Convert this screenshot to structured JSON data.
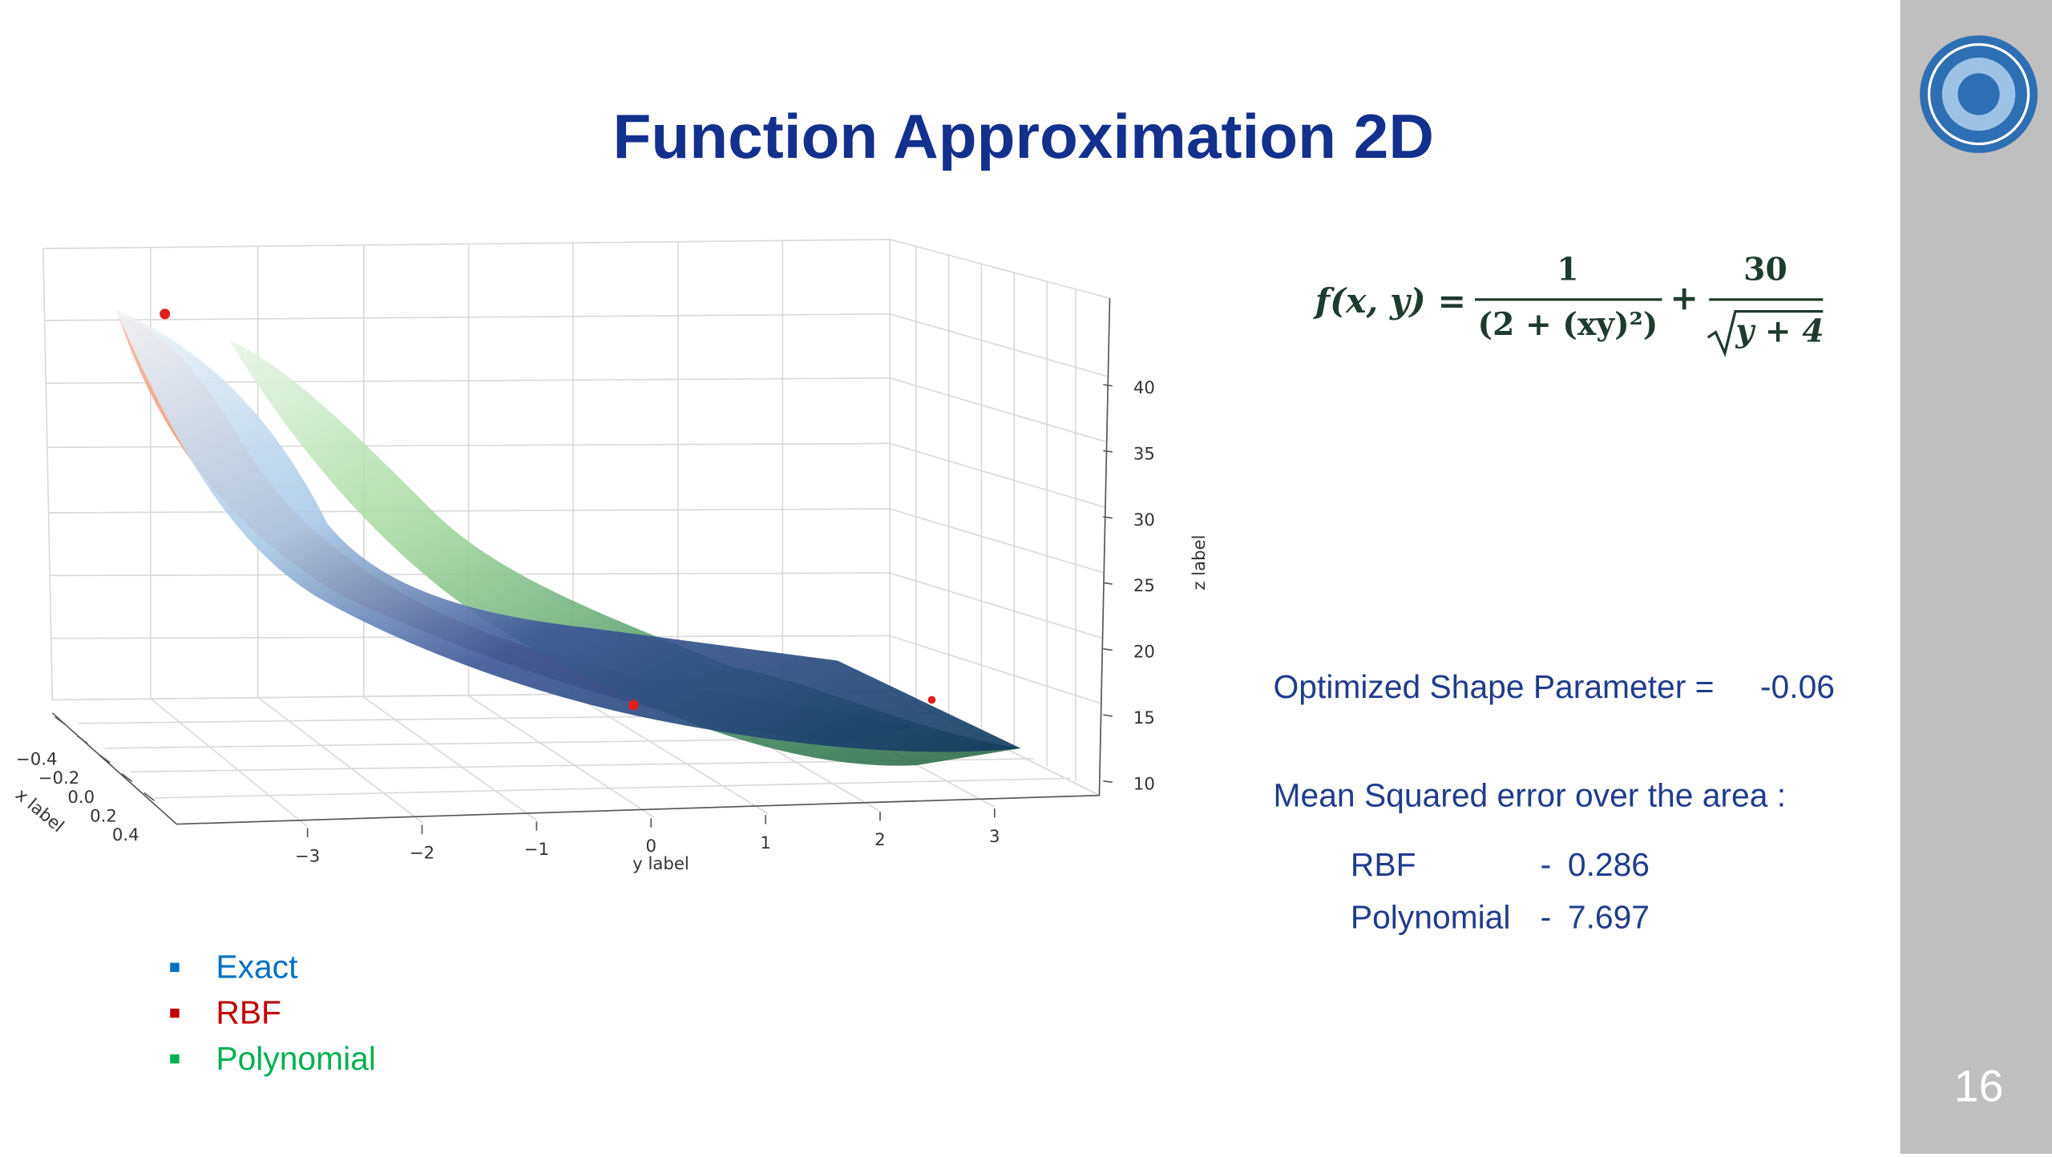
{
  "title": "Function Approximation 2D",
  "plot": {
    "x_label": "x label",
    "y_label": "y label",
    "z_label": "z label",
    "x_ticks": [
      "−0.4",
      "−0.2",
      "0.0",
      "0.2",
      "0.4"
    ],
    "y_ticks": [
      "−3",
      "−2",
      "−1",
      "0",
      "1",
      "2",
      "3"
    ],
    "z_ticks": [
      "10",
      "15",
      "20",
      "25",
      "30",
      "35",
      "40"
    ]
  },
  "formula": {
    "lhs": "f(x, y) =",
    "num1": "1",
    "den1": "(2 + (xy)²)",
    "plus": "+",
    "num2": "30",
    "den2": "y + 4"
  },
  "legend": [
    "Exact",
    "RBF",
    "Polynomial"
  ],
  "shape_parameter": {
    "label": "Optimized Shape Parameter =",
    "value": -0.06
  },
  "mse": {
    "label": "Mean Squared error over the area :",
    "rows": [
      {
        "name": "RBF",
        "separator": "-",
        "value": 0.286
      },
      {
        "name": "Polynomial",
        "separator": "-",
        "value": 7.697
      }
    ]
  },
  "page_number": 16
}
